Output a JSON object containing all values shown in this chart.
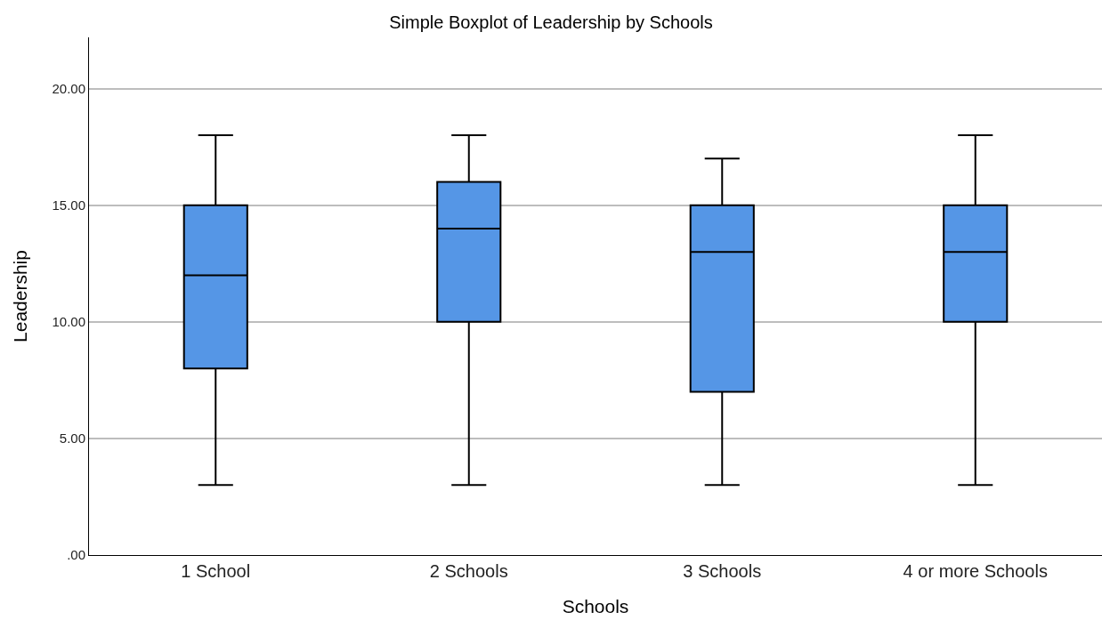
{
  "chart_data": {
    "type": "box",
    "title": "Simple Boxplot of Leadership by Schools",
    "xlabel": "Schools",
    "ylabel": "Leadership",
    "categories": [
      "1 School",
      "2 Schools",
      "3 Schools",
      "4 or more Schools"
    ],
    "color": "#5596e6",
    "boxes": [
      {
        "low": 3,
        "q1": 8,
        "median": 12,
        "q3": 15,
        "high": 18
      },
      {
        "low": 3,
        "q1": 10,
        "median": 14,
        "q3": 16,
        "high": 18
      },
      {
        "low": 3,
        "q1": 7,
        "median": 13,
        "q3": 15,
        "high": 17
      },
      {
        "low": 3,
        "q1": 10,
        "median": 13,
        "q3": 15,
        "high": 18
      }
    ],
    "ylim": [
      0,
      22.2
    ],
    "yticks": [
      {
        "value": 0,
        "label": ".00"
      },
      {
        "value": 5,
        "label": "5.00"
      },
      {
        "value": 10,
        "label": "10.00"
      },
      {
        "value": 15,
        "label": "15.00"
      },
      {
        "value": 20,
        "label": "20.00"
      }
    ],
    "grid": "y"
  }
}
